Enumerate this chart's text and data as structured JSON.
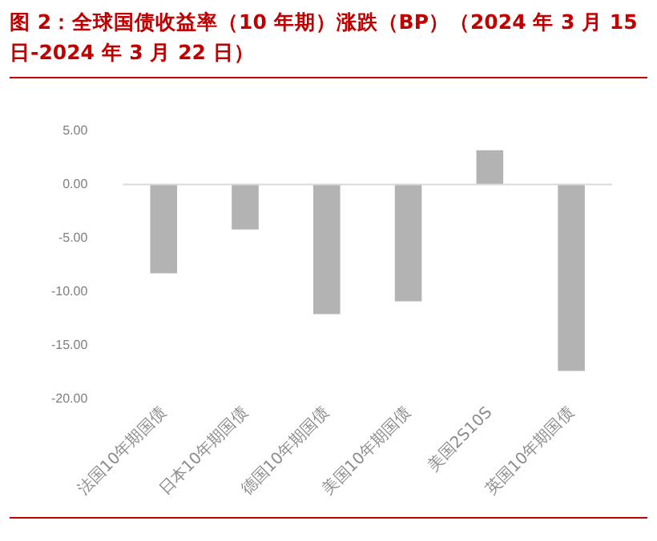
{
  "chart_data": {
    "type": "bar",
    "title": "图 2：全球国债收益率（10 年期）涨跌（BP）（2024 年 3 月 15 日-2024 年 3 月 22 日）",
    "categories": [
      "法国10年期国债",
      "日本10年期国债",
      "德国10年期国债",
      "美国10年期国债",
      "美国2S10S",
      "英国10年期国债"
    ],
    "values": [
      -8.3,
      -4.2,
      -12.1,
      -10.9,
      3.2,
      -17.4
    ],
    "color": "#b3b3b3",
    "ylim": [
      -20,
      5
    ],
    "yticks": [
      {
        "value": -20,
        "label": "-20.00"
      },
      {
        "value": -15,
        "label": "-15.00"
      },
      {
        "value": -10,
        "label": "-10.00"
      },
      {
        "value": -5,
        "label": "-5.00"
      },
      {
        "value": 0,
        "label": "0.00"
      },
      {
        "value": 5,
        "label": "5.00"
      }
    ],
    "ref_lines": [
      {
        "axis": "y",
        "value": 0,
        "color": "#d9d9d9"
      }
    ],
    "grid": false,
    "legend": false
  }
}
